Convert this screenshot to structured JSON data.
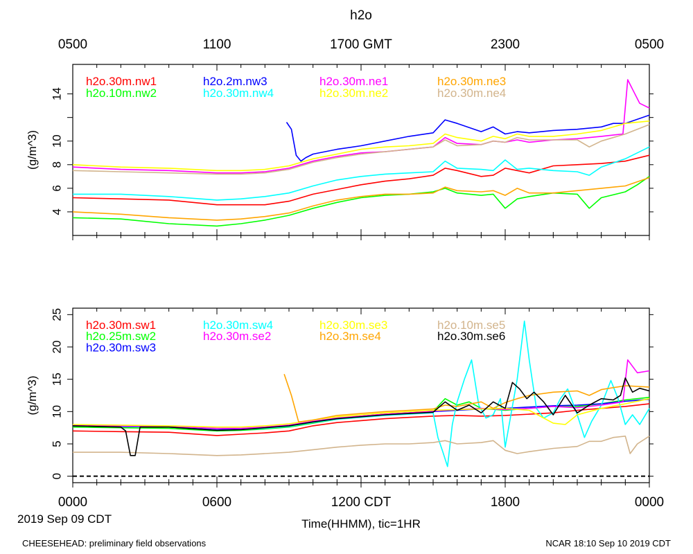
{
  "page": {
    "title": "h2o",
    "top_axis_ticks": [
      "0500",
      "1100",
      "1700 GMT",
      "2300",
      "0500"
    ],
    "bottom_axis_ticks": [
      "0000",
      "0600",
      "1200 CDT",
      "1800",
      "0000"
    ],
    "date_label": "2019 Sep 09 CDT",
    "xlabel": "Time(HHMM), tic=1HR",
    "footer_left": "CHEESEHEAD: preliminary field observations",
    "footer_right": "NCAR 18:10 Sep 10 2019 CDT"
  },
  "chart_data": [
    {
      "type": "line",
      "title": "h2o",
      "xlabel": "Time(HHMM), tic=1HR",
      "ylabel": "(g/m^3)",
      "x_unit": "hours since 0000 CDT",
      "xlim": [
        0,
        24
      ],
      "ylim": [
        2,
        16.5
      ],
      "yticks": [
        4,
        6,
        8,
        10,
        12,
        14
      ],
      "ytick_labels": [
        "4",
        "6",
        "8",
        "10",
        "",
        "14"
      ],
      "series": [
        {
          "name": "h2o.30m.nw1",
          "color": "#ff0000",
          "x": [
            0,
            2,
            4,
            6,
            7,
            8,
            9,
            10,
            11,
            12,
            13,
            14,
            15,
            15.5,
            16,
            17,
            17.5,
            18,
            18.5,
            19,
            20,
            21,
            22,
            23,
            24
          ],
          "y": [
            5.2,
            5.1,
            5.0,
            4.6,
            4.6,
            4.6,
            4.9,
            5.5,
            5.9,
            6.3,
            6.6,
            6.8,
            7.1,
            7.7,
            7.5,
            7.0,
            7.1,
            7.7,
            7.5,
            7.3,
            7.9,
            8.0,
            8.1,
            8.3,
            8.8
          ]
        },
        {
          "name": "h2o.10m.nw2",
          "color": "#00ff00",
          "x": [
            0,
            2,
            4,
            6,
            7,
            8,
            9,
            10,
            11,
            12,
            13,
            14,
            15,
            15.5,
            16,
            17,
            17.5,
            18,
            18.5,
            19,
            20,
            21,
            21.5,
            22,
            23,
            23.5,
            24
          ],
          "y": [
            3.5,
            3.4,
            3.0,
            2.8,
            3.0,
            3.3,
            3.7,
            4.3,
            4.8,
            5.2,
            5.4,
            5.5,
            5.7,
            6.0,
            5.6,
            5.4,
            5.5,
            4.3,
            5.1,
            5.3,
            5.6,
            5.5,
            4.3,
            5.2,
            5.7,
            6.3,
            7.0
          ]
        },
        {
          "name": "h2o.2m.nw3",
          "color": "#0000ff",
          "x": [
            8.9,
            9.1,
            9.3,
            9.5,
            9.7,
            10,
            11,
            12,
            13,
            14,
            15,
            15.5,
            16,
            17,
            17.5,
            18,
            18.5,
            19,
            20,
            21,
            22,
            22.5,
            23,
            24
          ],
          "y": [
            11.6,
            11.0,
            8.8,
            8.3,
            8.6,
            8.9,
            9.3,
            9.6,
            10.0,
            10.4,
            10.7,
            11.8,
            11.5,
            10.8,
            11.2,
            10.6,
            10.8,
            10.7,
            10.9,
            11.0,
            11.2,
            11.5,
            11.5,
            12.2
          ]
        },
        {
          "name": "h2o.30m.nw4",
          "color": "#00ffff",
          "x": [
            0,
            2,
            4,
            6,
            7,
            8,
            9,
            10,
            11,
            12,
            13,
            14,
            15,
            15.5,
            16,
            17,
            17.5,
            18,
            18.5,
            19,
            20,
            21,
            21.5,
            22,
            23,
            24
          ],
          "y": [
            5.5,
            5.5,
            5.3,
            5.0,
            5.1,
            5.3,
            5.6,
            6.2,
            6.7,
            7.0,
            7.2,
            7.3,
            7.4,
            8.3,
            7.7,
            7.6,
            7.5,
            8.4,
            7.6,
            7.7,
            7.5,
            7.4,
            7.1,
            7.8,
            8.5,
            9.5
          ]
        },
        {
          "name": "h2o.30m.ne1",
          "color": "#ff00ff",
          "x": [
            0,
            2,
            4,
            6,
            7,
            8,
            9,
            10,
            11,
            12,
            13,
            14,
            15,
            15.5,
            16,
            17,
            17.5,
            18,
            18.5,
            19,
            20,
            21,
            22,
            22.9,
            23.1,
            23.3,
            23.6,
            24
          ],
          "y": [
            7.8,
            7.6,
            7.5,
            7.3,
            7.3,
            7.4,
            7.7,
            8.3,
            8.7,
            9.0,
            9.1,
            9.3,
            9.5,
            10.3,
            9.8,
            9.7,
            10.0,
            9.9,
            10.1,
            9.9,
            10.1,
            10.2,
            10.4,
            10.6,
            15.2,
            14.4,
            13.2,
            12.8
          ]
        },
        {
          "name": "h2o.30m.ne2",
          "color": "#ffff00",
          "x": [
            0,
            2,
            4,
            6,
            7,
            8,
            9,
            10,
            11,
            12,
            13,
            14,
            15,
            15.5,
            16,
            17,
            17.5,
            18,
            18.5,
            19,
            20,
            21,
            22,
            23,
            24
          ],
          "y": [
            8.0,
            7.8,
            7.7,
            7.5,
            7.5,
            7.6,
            7.9,
            8.5,
            8.9,
            9.3,
            9.5,
            9.6,
            9.8,
            10.6,
            10.3,
            10.0,
            10.4,
            10.2,
            10.6,
            10.4,
            10.4,
            10.6,
            10.9,
            11.5,
            11.7
          ]
        },
        {
          "name": "h2o.30m.ne3",
          "color": "#ffa500",
          "x": [
            0,
            2,
            4,
            6,
            7,
            8,
            9,
            10,
            11,
            12,
            13,
            14,
            15,
            15.5,
            16,
            17,
            17.5,
            18,
            18.5,
            19,
            20,
            21,
            22,
            23,
            24
          ],
          "y": [
            4.0,
            3.8,
            3.5,
            3.3,
            3.4,
            3.6,
            3.9,
            4.5,
            5.0,
            5.3,
            5.5,
            5.5,
            5.6,
            6.1,
            5.8,
            5.7,
            5.8,
            5.4,
            6.0,
            5.6,
            5.6,
            5.8,
            6.0,
            6.2,
            6.9
          ]
        },
        {
          "name": "h2o.30m.ne4",
          "color": "#d2b48c",
          "x": [
            0,
            2,
            4,
            6,
            7,
            8,
            9,
            10,
            11,
            12,
            13,
            14,
            15,
            15.5,
            16,
            17,
            17.5,
            18,
            18.5,
            19,
            20,
            21,
            21.5,
            22,
            23,
            24
          ],
          "y": [
            7.5,
            7.4,
            7.3,
            7.2,
            7.2,
            7.3,
            7.6,
            8.2,
            8.6,
            8.9,
            9.1,
            9.3,
            9.5,
            10.1,
            9.6,
            9.7,
            10.0,
            9.9,
            10.3,
            10.1,
            10.1,
            10.1,
            9.5,
            10.0,
            10.6,
            11.4
          ]
        }
      ],
      "legend": "top, four columns"
    },
    {
      "type": "line",
      "xlabel": "Time(HHMM), tic=1HR",
      "ylabel": "(g/m^3)",
      "x_unit": "hours since 0000 CDT",
      "xlim": [
        0,
        24
      ],
      "ylim": [
        -1,
        26
      ],
      "yticks": [
        0,
        5,
        10,
        15,
        20,
        25
      ],
      "ytick_labels": [
        "0",
        "5",
        "10",
        "15",
        "20",
        "25"
      ],
      "reference_line": {
        "y": 0,
        "style": "dashed",
        "color": "#000000"
      },
      "series": [
        {
          "name": "h2o.30m.sw1",
          "color": "#ff0000",
          "x": [
            0,
            2,
            4,
            6,
            7,
            8,
            9,
            10,
            11,
            12,
            13,
            14,
            15,
            16,
            17,
            18,
            19,
            20,
            21,
            22,
            23,
            24
          ],
          "y": [
            7.0,
            6.9,
            6.8,
            6.3,
            6.5,
            6.7,
            7.0,
            7.8,
            8.3,
            8.6,
            8.9,
            9.1,
            9.3,
            9.4,
            9.3,
            9.4,
            9.6,
            9.8,
            10.2,
            10.5,
            10.8,
            11.2
          ]
        },
        {
          "name": "h2o.25m.sw2",
          "color": "#00ff00",
          "x": [
            0,
            2,
            4,
            6,
            7,
            8,
            9,
            10,
            11,
            12,
            13,
            14,
            15,
            15.5,
            16,
            16.5,
            17,
            18,
            19,
            20,
            21,
            22,
            23,
            24
          ],
          "y": [
            7.6,
            7.5,
            7.4,
            7.0,
            7.1,
            7.3,
            7.6,
            8.2,
            8.8,
            9.2,
            9.5,
            9.8,
            10.0,
            12.0,
            11.0,
            11.5,
            10.5,
            10.2,
            10.5,
            10.8,
            10.8,
            11.2,
            11.8,
            12.2
          ]
        },
        {
          "name": "h2o.30m.sw3",
          "color": "#0000ff",
          "x": [
            0,
            2,
            4,
            6,
            7,
            8,
            9,
            10,
            11,
            12,
            13,
            14,
            15,
            16,
            17,
            18,
            19,
            20,
            21,
            22,
            23,
            24
          ],
          "y": [
            7.8,
            7.7,
            7.6,
            7.2,
            7.3,
            7.5,
            7.8,
            8.4,
            8.9,
            9.3,
            9.6,
            9.8,
            10.0,
            10.2,
            10.4,
            10.5,
            10.7,
            10.9,
            11.0,
            11.2,
            11.6,
            11.9
          ]
        },
        {
          "name": "h2o.30m.sw4",
          "color": "#00ffff",
          "x": [
            0,
            2,
            4,
            6,
            7,
            8,
            9,
            10,
            11,
            12,
            13,
            14,
            15,
            15.2,
            15.4,
            15.6,
            15.8,
            16,
            16.3,
            16.6,
            16.9,
            17.2,
            17.5,
            17.8,
            18,
            18.5,
            18.8,
            19,
            19.3,
            19.6,
            20,
            20.3,
            20.6,
            21,
            21.3,
            21.6,
            22,
            22.4,
            22.7,
            23,
            23.3,
            23.6,
            24
          ],
          "y": [
            7.9,
            7.8,
            7.6,
            7.1,
            7.2,
            7.4,
            7.7,
            8.3,
            8.8,
            9.1,
            9.4,
            9.6,
            9.8,
            6.0,
            3.8,
            1.5,
            8.0,
            11.5,
            15.0,
            18.0,
            11.0,
            9.0,
            9.5,
            12.0,
            4.5,
            15.0,
            24.0,
            18.0,
            10.5,
            9.0,
            9.8,
            12.0,
            13.5,
            9.5,
            6.0,
            8.5,
            11.0,
            14.8,
            12.0,
            8.0,
            9.5,
            8.0,
            10.5
          ]
        },
        {
          "name": "h2o.30m.se2",
          "color": "#ff00ff",
          "x": [
            0,
            2,
            4,
            6,
            7,
            8,
            9,
            10,
            11,
            12,
            13,
            14,
            15,
            16,
            17,
            18,
            19,
            20,
            21,
            22,
            22.9,
            23.1,
            23.5,
            24
          ],
          "y": [
            7.9,
            7.8,
            7.7,
            7.4,
            7.4,
            7.6,
            7.9,
            8.5,
            9.0,
            9.3,
            9.6,
            9.8,
            10.1,
            10.3,
            10.5,
            10.3,
            10.5,
            10.8,
            10.6,
            11.0,
            11.5,
            18.0,
            16.0,
            16.3
          ]
        },
        {
          "name": "h2o.30m.se3",
          "color": "#ffff00",
          "x": [
            0,
            2,
            4,
            6,
            7,
            8,
            9,
            10,
            11,
            12,
            13,
            14,
            15,
            16,
            17,
            18,
            19,
            20,
            20.5,
            21,
            22,
            23,
            24
          ],
          "y": [
            8.0,
            7.9,
            7.8,
            7.6,
            7.6,
            7.8,
            8.1,
            8.7,
            9.2,
            9.5,
            9.8,
            10.0,
            10.2,
            10.3,
            10.4,
            10.5,
            10.2,
            8.2,
            8.0,
            9.5,
            10.5,
            11.2,
            12.0
          ]
        },
        {
          "name": "h2o.3m.se4",
          "color": "#ffa500",
          "x": [
            8.8,
            9.1,
            9.4,
            10,
            11,
            12,
            13,
            14,
            15,
            15.5,
            16,
            17,
            17.5,
            18,
            18.5,
            19,
            20,
            21,
            21.5,
            22,
            23,
            24
          ],
          "y": [
            15.8,
            12.5,
            8.4,
            8.7,
            9.4,
            9.7,
            10.0,
            10.2,
            10.4,
            11.0,
            10.8,
            11.5,
            10.5,
            11.4,
            12.0,
            12.5,
            13.0,
            13.2,
            12.5,
            13.4,
            14.0,
            13.8
          ]
        },
        {
          "name": "h2o.10m.se5",
          "color": "#d2b48c",
          "x": [
            0,
            2,
            4,
            6,
            7,
            8,
            9,
            10,
            11,
            12,
            13,
            14,
            15,
            15.5,
            16,
            17,
            17.5,
            18,
            18.5,
            19,
            20,
            21,
            21.5,
            22,
            22.5,
            23,
            23.2,
            23.5,
            24
          ],
          "y": [
            3.7,
            3.7,
            3.5,
            3.2,
            3.3,
            3.5,
            3.7,
            4.1,
            4.5,
            4.8,
            5.0,
            5.0,
            5.2,
            5.5,
            5.0,
            5.2,
            5.5,
            4.0,
            3.5,
            3.8,
            4.3,
            4.6,
            5.4,
            5.4,
            6.0,
            6.2,
            3.5,
            5.0,
            6.2
          ]
        },
        {
          "name": "h2o.30m.se6",
          "color": "#000000",
          "x": [
            0,
            1,
            2,
            2.2,
            2.4,
            2.6,
            2.8,
            4,
            6,
            7,
            8,
            9,
            10,
            11,
            12,
            13,
            14,
            15,
            15.5,
            16,
            16.5,
            17,
            17.5,
            18,
            18.3,
            18.6,
            18.9,
            19.2,
            19.6,
            20,
            20.5,
            21,
            21.5,
            22,
            22.5,
            22.8,
            23,
            23.3,
            23.6,
            24
          ],
          "y": [
            7.8,
            7.7,
            7.6,
            7.0,
            3.2,
            3.2,
            7.6,
            7.6,
            7.1,
            7.2,
            7.5,
            7.8,
            8.4,
            8.9,
            9.2,
            9.5,
            9.7,
            9.9,
            11.5,
            10.2,
            11.0,
            9.8,
            11.5,
            10.5,
            14.5,
            13.5,
            12.0,
            13.0,
            11.5,
            9.5,
            12.5,
            9.8,
            11.0,
            12.0,
            11.8,
            12.5,
            15.2,
            13.0,
            13.6,
            13.2
          ]
        }
      ],
      "legend": "top, four columns"
    }
  ]
}
